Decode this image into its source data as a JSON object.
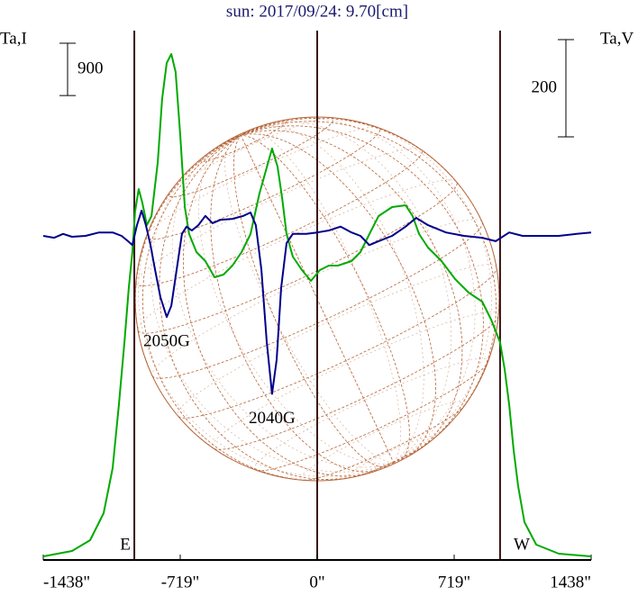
{
  "chart_data": {
    "type": "line",
    "title": "sun: 2017/09/24: 9.70[cm]",
    "ylabel": "Ta,I",
    "y2label": "Ta,V",
    "xlim": [
      -1438,
      1438
    ],
    "xticks": [
      {
        "value": -1438,
        "label": "-1438\""
      },
      {
        "value": -719,
        "label": "-719\""
      },
      {
        "value": 0,
        "label": "0\""
      },
      {
        "value": 719,
        "label": "719\""
      },
      {
        "value": 1438,
        "label": "1438\""
      }
    ],
    "ylim": [
      0,
      8990
    ],
    "y2lim": [
      -663,
      411
    ],
    "scale_bar": 900,
    "scale_bar2": 200,
    "vlines": [
      -960,
      0,
      960
    ],
    "limb_labels": [
      "E",
      "W"
    ],
    "annotations": [
      {
        "text": "2050G",
        "x": -790,
        "y": -167
      },
      {
        "text": "2040G",
        "x": -237,
        "y": -325
      }
    ],
    "series": [
      {
        "color": "#00aa00",
        "x": [
          -1438,
          -1287,
          -1192,
          -1121,
          -1074,
          -1041,
          -1012,
          -989,
          -970,
          -956,
          -937,
          -918,
          -894,
          -870,
          -837,
          -814,
          -790,
          -766,
          -743,
          -719,
          -695,
          -672,
          -634,
          -587,
          -539,
          -492,
          -445,
          -397,
          -350,
          -303,
          -270,
          -237,
          -208,
          -184,
          -161,
          -128,
          -80,
          -33,
          14,
          61,
          109,
          180,
          227,
          274,
          322,
          393,
          464,
          501,
          535,
          582,
          653,
          724,
          795,
          866,
          913,
          960,
          984,
          1008,
          1031,
          1055,
          1088,
          1150,
          1268,
          1438
        ],
        "values": [
          31,
          124,
          310,
          775,
          1550,
          2635,
          3720,
          4650,
          5270,
          5968,
          6355,
          6123,
          5735,
          5890,
          6820,
          7905,
          8525,
          8680,
          8370,
          7285,
          6045,
          5580,
          5270,
          5115,
          4836,
          4883,
          5038,
          5270,
          5580,
          6278,
          6665,
          7053,
          6743,
          6200,
          5580,
          5193,
          4960,
          4774,
          4960,
          5038,
          5038,
          5115,
          5270,
          5580,
          5890,
          6045,
          6076,
          5890,
          5580,
          5348,
          5115,
          4805,
          4573,
          4418,
          4108,
          3720,
          3255,
          2635,
          1860,
          1240,
          620,
          233,
          78,
          31
        ]
      },
      {
        "color": "#00008b",
        "axis": "y2",
        "x": [
          -1438,
          -1381,
          -1334,
          -1287,
          -1216,
          -1145,
          -1074,
          -1027,
          -993,
          -970,
          -946,
          -922,
          -899,
          -875,
          -851,
          -823,
          -790,
          -766,
          -738,
          -710,
          -686,
          -658,
          -624,
          -587,
          -549,
          -506,
          -445,
          -388,
          -350,
          -322,
          -293,
          -265,
          -237,
          -213,
          -189,
          -161,
          -128,
          -57,
          0,
          61,
          123,
          180,
          227,
          274,
          322,
          393,
          464,
          520,
          582,
          676,
          771,
          866,
          937,
          1008,
          1078,
          1173,
          1268,
          1362,
          1438
        ],
        "values": [
          0,
          -4,
          4,
          -2,
          0,
          7,
          7,
          0,
          -11,
          -19,
          22,
          52,
          22,
          -19,
          -70,
          -126,
          -167,
          -144,
          -70,
          4,
          19,
          11,
          22,
          41,
          26,
          33,
          35,
          41,
          48,
          22,
          -70,
          -218,
          -325,
          -255,
          -107,
          -15,
          4,
          4,
          7,
          11,
          19,
          7,
          0,
          -19,
          -11,
          0,
          19,
          37,
          22,
          7,
          0,
          -4,
          -11,
          7,
          0,
          0,
          0,
          4,
          7
        ]
      }
    ]
  }
}
